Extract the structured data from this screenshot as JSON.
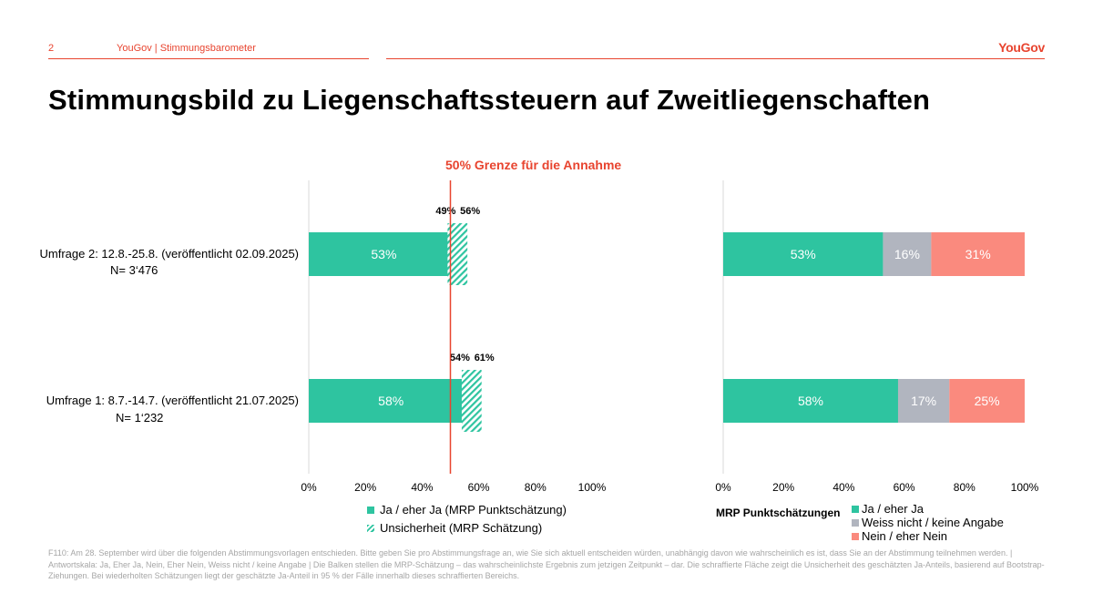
{
  "header": {
    "page_number": "2",
    "source": "YouGov | Stimmungsbarometer",
    "brand": "YouGov"
  },
  "title": "Stimmungsbild zu Liegenschaftssteuern auf Zweitliegenschaften",
  "threshold_label": "50% Grenze für die Annahme",
  "rows": [
    {
      "label": "Umfrage 2: 12.8.-25.8. (veröffentlicht 02.09.2025)",
      "n": "N= 3‘476"
    },
    {
      "label": "Umfrage 1: 8.7.-14.7. (veröffentlicht 21.07.2025)",
      "n": "N= 1‘232"
    }
  ],
  "legend_left": {
    "point": "Ja / eher Ja (MRP Punktschätzung)",
    "uncertainty": "Unsicherheit (MRP Schätzung)"
  },
  "legend_right": {
    "title": "MRP Punktschätzungen",
    "items": [
      "Ja / eher Ja",
      "Weiss nicht / keine Angabe",
      "Nein / eher Nein"
    ]
  },
  "colors": {
    "ja": "#2ec4a0",
    "weiss_nicht": "#b1b5bf",
    "nein": "#fa8a7e",
    "threshold": "#e8442f",
    "axis": "#d9d9d9"
  },
  "footnote": "F110: Am 28. September wird über die folgenden Abstimmungsvorlagen entschieden. Bitte geben Sie pro Abstimmungsfrage an, wie Sie sich aktuell entscheiden würden, unabhängig davon wie wahrscheinlich es ist, dass Sie an der Abstimmung teilnehmen werden. | Antwortskala: Ja, Eher Ja, Nein, Eher Nein, Weiss nicht / keine Angabe | Die Balken stellen die MRP-Schätzung – das wahrscheinlichste Ergebnis zum jetzigen Zeitpunkt – dar. Die schraffierte Fläche zeigt die Unsicherheit des geschätzten Ja-Anteils, basierend auf Bootstrap-Ziehungen. Bei wiederholten Schätzungen liegt der geschätzte Ja-Anteil in 95 % der Fälle innerhalb dieses schraffierten Bereichs.",
  "chart_data": [
    {
      "type": "bar",
      "orientation": "horizontal",
      "categories": [
        "Umfrage 2: 12.8.-25.8. (veröffentlicht 02.09.2025)",
        "Umfrage 1: 8.7.-14.7. (veröffentlicht 21.07.2025)"
      ],
      "series": [
        {
          "name": "Ja / eher Ja (MRP Punktschätzung)",
          "values": [
            53,
            58
          ]
        }
      ],
      "uncertainty": [
        {
          "low": 49,
          "high": 56
        },
        {
          "low": 54,
          "high": 61
        }
      ],
      "value_labels": [
        "53%",
        "58%"
      ],
      "interval_labels": [
        [
          "49%",
          "56%"
        ],
        [
          "54%",
          "61%"
        ]
      ],
      "threshold": 50,
      "threshold_label": "50% Grenze für die Annahme",
      "xlim": [
        0,
        100
      ],
      "xticks": [
        "0%",
        "20%",
        "40%",
        "60%",
        "80%",
        "100%"
      ]
    },
    {
      "type": "bar",
      "orientation": "horizontal",
      "stacked": true,
      "categories": [
        "Umfrage 2: 12.8.-25.8. (veröffentlicht 02.09.2025)",
        "Umfrage 1: 8.7.-14.7. (veröffentlicht 21.07.2025)"
      ],
      "series": [
        {
          "name": "Ja / eher Ja",
          "values": [
            53,
            58
          ],
          "labels": [
            "53%",
            "58%"
          ]
        },
        {
          "name": "Weiss nicht / keine Angabe",
          "values": [
            16,
            17
          ],
          "labels": [
            "16%",
            "17%"
          ]
        },
        {
          "name": "Nein / eher Nein",
          "values": [
            31,
            25
          ],
          "labels": [
            "31%",
            "25%"
          ]
        }
      ],
      "legend_title": "MRP Punktschätzungen",
      "xlim": [
        0,
        100
      ],
      "xticks": [
        "0%",
        "20%",
        "40%",
        "60%",
        "80%",
        "100%"
      ]
    }
  ]
}
